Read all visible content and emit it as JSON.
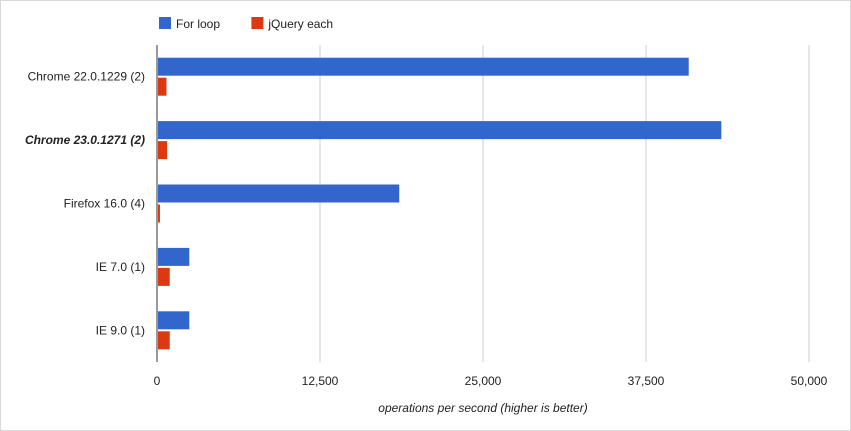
{
  "chart_data": {
    "type": "bar",
    "orientation": "horizontal",
    "categories": [
      "Chrome 22.0.1229 (2)",
      "Chrome 23.0.1271 (2)",
      "Firefox 16.0 (4)",
      "IE 7.0 (1)",
      "IE 9.0 (1)"
    ],
    "highlighted_category": "Chrome 23.0.1271 (2)",
    "series": [
      {
        "name": "For loop",
        "color": "#3366cc",
        "values": [
          40700,
          43200,
          18500,
          2400,
          2400
        ]
      },
      {
        "name": "jQuery each",
        "color": "#dc3912",
        "values": [
          650,
          700,
          150,
          900,
          900
        ]
      }
    ],
    "xlim": [
      0,
      50000
    ],
    "xticks": [
      "0",
      "12,500",
      "25,000",
      "37,500",
      "50,000"
    ],
    "xtick_values": [
      0,
      12500,
      25000,
      37500,
      50000
    ],
    "xlabel": "operations per second (higher is better)",
    "ylabel": "",
    "grid": true,
    "legend_position": "top-left"
  }
}
